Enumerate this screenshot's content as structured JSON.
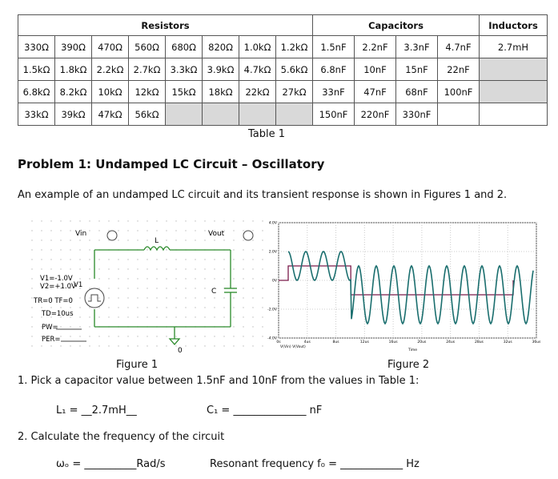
{
  "table": {
    "headers": [
      "Resistors",
      "Capacitors",
      "Inductors"
    ],
    "rows": [
      {
        "resistors": [
          "330Ω",
          "390Ω",
          "470Ω",
          "560Ω",
          "680Ω",
          "820Ω",
          "1.0kΩ",
          "1.2kΩ"
        ],
        "capacitors": [
          "1.5nF",
          "2.2nF",
          "3.3nF",
          "4.7nF"
        ],
        "inductors": [
          "2.7mH"
        ]
      },
      {
        "resistors": [
          "1.5kΩ",
          "1.8kΩ",
          "2.2kΩ",
          "2.7kΩ",
          "3.3kΩ",
          "3.9kΩ",
          "4.7kΩ",
          "5.6kΩ"
        ],
        "capacitors": [
          "6.8nF",
          "10nF",
          "15nF",
          "22nF"
        ],
        "inductors": []
      },
      {
        "resistors": [
          "6.8kΩ",
          "8.2kΩ",
          "10kΩ",
          "12kΩ",
          "15kΩ",
          "18kΩ",
          "22kΩ",
          "27kΩ"
        ],
        "capacitors": [
          "33nF",
          "47nF",
          "68nF",
          "100nF"
        ],
        "inductors": []
      },
      {
        "resistors": [
          "33kΩ",
          "39kΩ",
          "47kΩ",
          "56kΩ"
        ],
        "capacitors": [
          "150nF",
          "220nF",
          "330nF"
        ],
        "inductors": []
      }
    ],
    "caption": "Table 1"
  },
  "problem": {
    "title": "Problem 1:  Undamped LC Circuit – Oscillatory",
    "intro": "An example of an undamped LC circuit and its transient response is shown in Figures 1 and 2."
  },
  "figure1": {
    "caption": "Figure 1",
    "labels": {
      "vin": "Vin",
      "vout": "Vout",
      "l": "L",
      "c": "C",
      "v1v2": [
        "V1=-1.0V",
        "V2=+1.0V"
      ],
      "source": "V1",
      "trtf": "TR=0  TF=0",
      "td": "TD=10us",
      "pw": "PW=",
      "per": "PER=",
      "ground": "0"
    }
  },
  "figure2": {
    "caption": "Figure 2",
    "y_labels": [
      "4.0V",
      "2.0V",
      "0V",
      "-2.0V",
      "-4.0V"
    ],
    "x_labels": [
      "0s",
      "4us",
      "8us",
      "12us",
      "16us",
      "20us",
      "24us",
      "28us",
      "32us",
      "36us"
    ],
    "legend": "V(Vin)  V(Vout)",
    "x_title": "Time"
  },
  "questions": [
    {
      "text": "1.  Pick a capacitor value between 1.5nF and 10nF from the values in Table 1:",
      "fields": [
        "L₁ = __2.7mH__",
        "C₁ = ______________ nF"
      ]
    },
    {
      "text": "2.  Calculate the frequency of the circuit",
      "fields": [
        "ωₒ = __________Rad/s",
        "Resonant frequency  f₀ = ____________ Hz"
      ]
    }
  ]
}
